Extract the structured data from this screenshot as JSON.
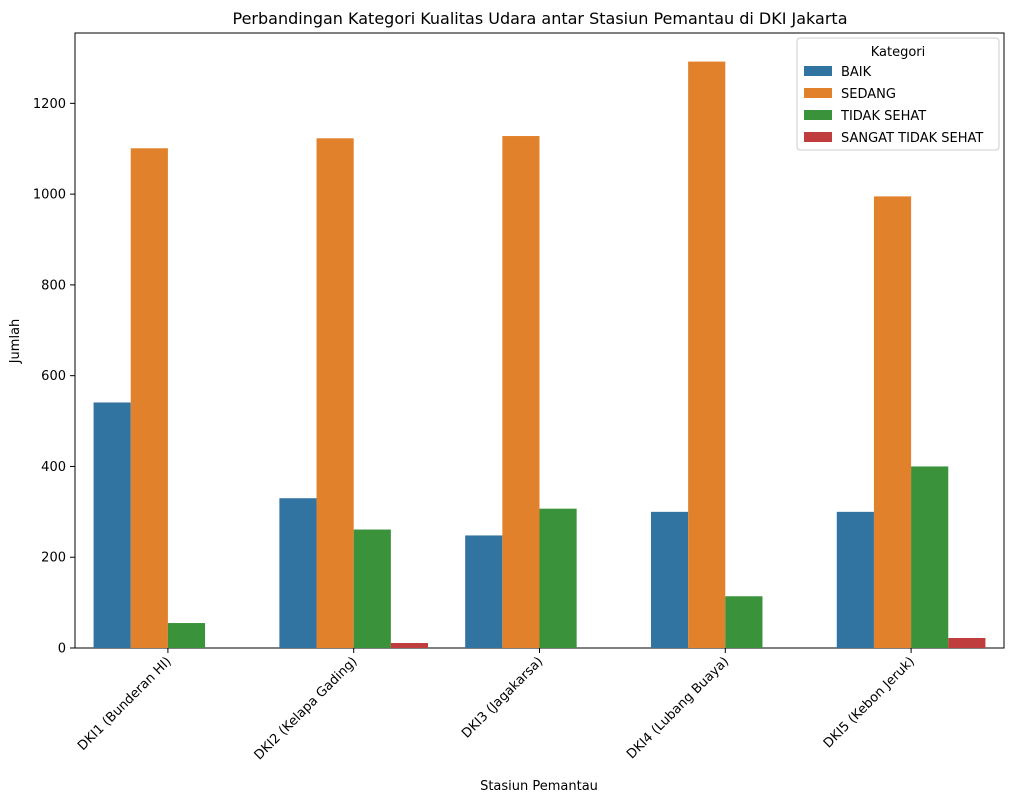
{
  "chart_data": {
    "type": "bar",
    "title": "Perbandingan Kategori Kualitas Udara antar Stasiun Pemantau di DKI Jakarta",
    "xlabel": "Stasiun Pemantau",
    "ylabel": "Jumlah",
    "categories": [
      "DKI1 (Bunderan HI)",
      "DKI2 (Kelapa Gading)",
      "DKI3 (Jagakarsa)",
      "DKI4 (Lubang Buaya)",
      "DKI5 (Kebon Jeruk)"
    ],
    "series": [
      {
        "name": "BAIK",
        "color": "#3274a1",
        "values": [
          541,
          330,
          248,
          300,
          300
        ]
      },
      {
        "name": "SEDANG",
        "color": "#e1812c",
        "values": [
          1101,
          1123,
          1128,
          1292,
          995
        ]
      },
      {
        "name": "TIDAK SEHAT",
        "color": "#3a923a",
        "values": [
          55,
          261,
          307,
          114,
          400
        ]
      },
      {
        "name": "SANGAT TIDAK SEHAT",
        "color": "#c03d3e",
        "values": [
          0,
          11,
          0,
          0,
          22
        ]
      }
    ],
    "ylim": [
      0,
      1355
    ],
    "yticks": [
      0,
      200,
      400,
      600,
      800,
      1000,
      1200
    ],
    "legend": {
      "title": "Kategori",
      "placement": "top-right"
    },
    "grid": false
  }
}
